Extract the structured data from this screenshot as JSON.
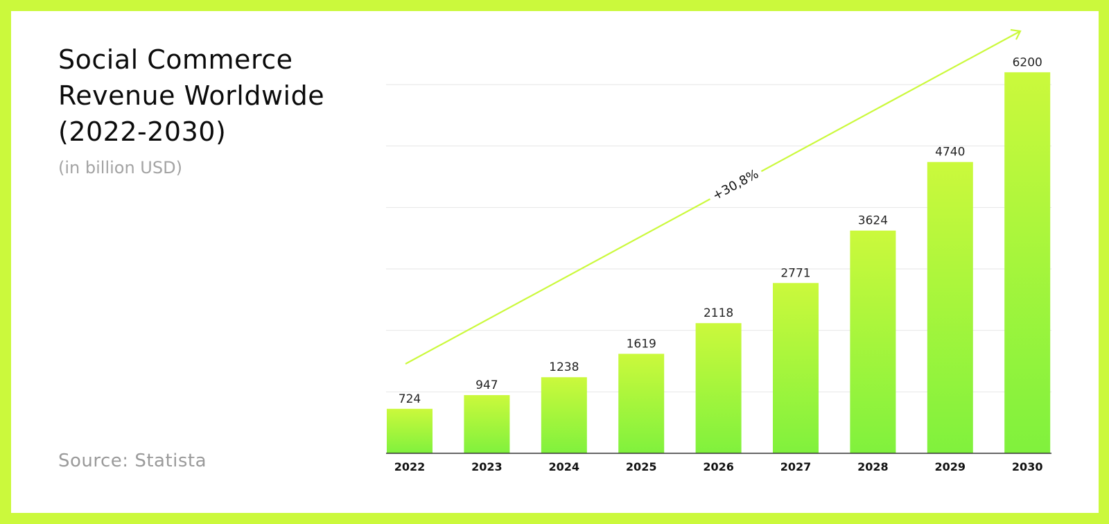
{
  "colors": {
    "frame": "#cbf93c",
    "bar_top": "#cbf93c",
    "bar_bottom": "#80f13d",
    "trend": "#cbf93c",
    "grid": "#e6e6e6",
    "axis": "#333333"
  },
  "header": {
    "title_line1": "Social Commerce",
    "title_line2": "Revenue Worldwide",
    "title_line3": "(2022-2030)",
    "subtitle": "(in billion USD)"
  },
  "footer": {
    "source": "Source: Statista"
  },
  "chart_data": {
    "type": "bar",
    "categories": [
      "2022",
      "2023",
      "2024",
      "2025",
      "2026",
      "2027",
      "2028",
      "2029",
      "2030"
    ],
    "values": [
      724,
      947,
      1238,
      1619,
      2118,
      2771,
      3624,
      4740,
      6200
    ],
    "ylim": [
      0,
      6000
    ],
    "grid": true,
    "gridlines": [
      1000,
      2000,
      3000,
      4000,
      5000,
      6000
    ],
    "annotation": "+30,8%"
  }
}
